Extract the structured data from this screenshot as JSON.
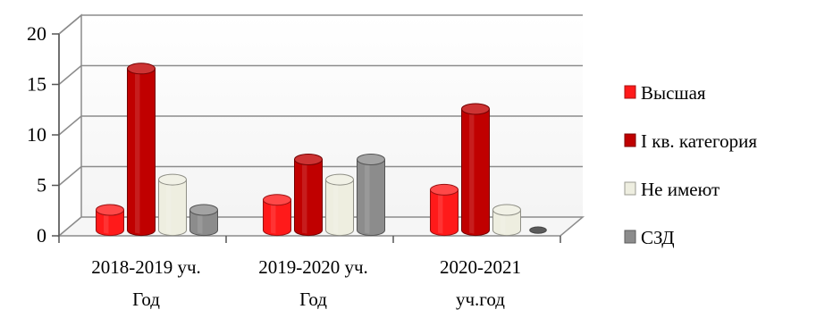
{
  "chart_data": {
    "type": "bar",
    "title": "",
    "xlabel": "",
    "ylabel": "",
    "ylim": [
      0,
      20
    ],
    "yticks": [
      "0",
      "5",
      "10",
      "15",
      "20"
    ],
    "grid": true,
    "legend_position": "right",
    "categories": [
      [
        "2018-2019 уч.",
        "Год"
      ],
      [
        "2019-2020 уч.",
        "Год"
      ],
      [
        "2020-2021",
        "уч.год"
      ]
    ],
    "series": [
      {
        "name": "Высшая",
        "color": "#ff1a1a",
        "values": [
          2,
          3,
          4
        ]
      },
      {
        "name": "I кв. категория",
        "color": "#c00000",
        "values": [
          16,
          7,
          12
        ]
      },
      {
        "name": "Не имеют",
        "color": "#eeeee0",
        "values": [
          5,
          5,
          2
        ]
      },
      {
        "name": "СЗД",
        "color": "#8c8c8c",
        "values": [
          2,
          7,
          0
        ]
      }
    ]
  }
}
